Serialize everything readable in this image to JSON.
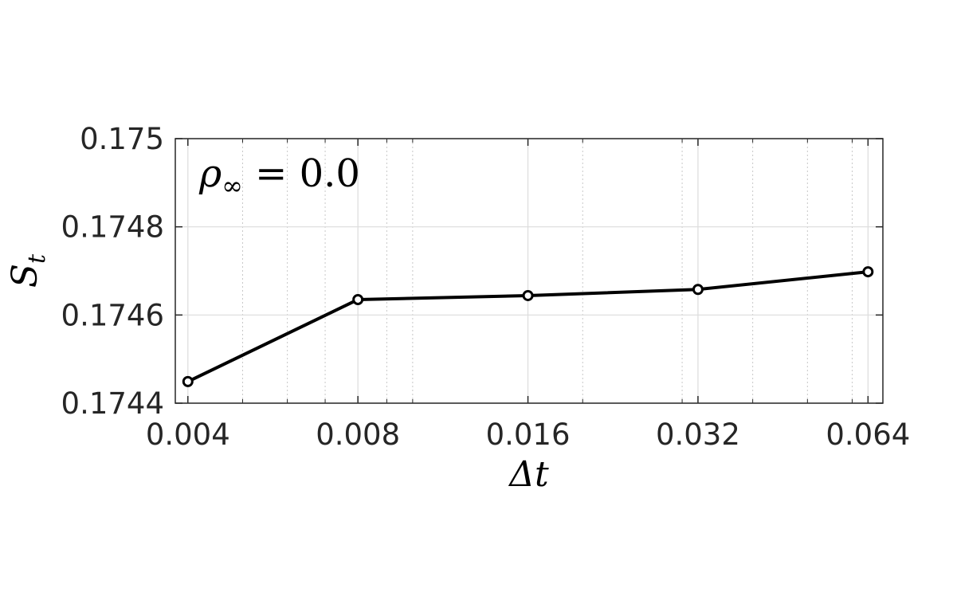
{
  "chart_data": {
    "type": "line",
    "xlabel": "Δt",
    "ylabel": {
      "text": "S",
      "sub": "t"
    },
    "annotation": {
      "text": "ρ",
      "sub": "∞",
      "rest": " = 0.0"
    },
    "x": [
      0.004,
      0.008,
      0.016,
      0.032,
      0.064
    ],
    "series": [
      {
        "name": "S_t",
        "color": "#000000",
        "values": [
          0.174449,
          0.174635,
          0.174644,
          0.174658,
          0.174698
        ]
      }
    ],
    "xscale": "log",
    "xlim": [
      0.0038,
      0.068
    ],
    "xticks": [
      0.004,
      0.008,
      0.016,
      0.032,
      0.064
    ],
    "xminorticks": [
      0.005,
      0.006,
      0.007,
      0.009,
      0.01,
      0.02,
      0.03,
      0.04,
      0.05,
      0.06
    ],
    "ylim": [
      0.1744,
      0.175
    ],
    "yticks": [
      0.1744,
      0.1746,
      0.1748,
      0.175
    ],
    "grid": true,
    "minor_grid": true
  }
}
